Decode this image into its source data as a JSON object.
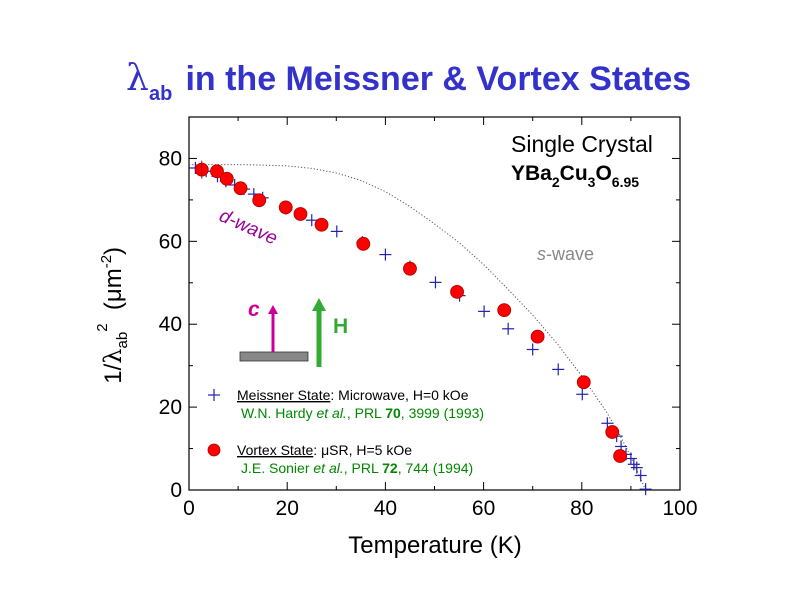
{
  "title": {
    "symbol": "λ",
    "subscript": "ab",
    "text": " in the Meissner & Vortex States"
  },
  "colors": {
    "title": "#3333cc",
    "meissner": "#2222aa",
    "vortex_fill": "#ff0000",
    "vortex_edge": "#aa0000",
    "dwave": "#990099",
    "swave": "#888888",
    "legend_ref": "#008800",
    "c_arrow": "#cc0099",
    "h_arrow": "#33aa33",
    "crystal": "#888888"
  },
  "annotations": {
    "crystal_line1": "Single Crystal",
    "formula": [
      {
        "t": "YBa",
        "sub": false
      },
      {
        "t": "2",
        "sub": true
      },
      {
        "t": "Cu",
        "sub": false
      },
      {
        "t": "3",
        "sub": true
      },
      {
        "t": "O",
        "sub": false
      },
      {
        "t": "6.95",
        "sub": true
      }
    ],
    "dwave": "d-wave",
    "swave_italic": "s",
    "swave_rest": "-wave",
    "c_label": "c",
    "h_label": "H"
  },
  "legend": {
    "meissner": {
      "name": "Meissner State",
      "detail": ": Microwave, H=0 kOe",
      "ref_authors": "W.N. Hardy ",
      "ref_etal": "et al.",
      "ref_journal": ", PRL ",
      "ref_vol": "70",
      "ref_rest": ", 3999 (1993)"
    },
    "vortex": {
      "name": "Vortex State",
      "detail_sym": "μ",
      "detail": "SR, H=5 kOe",
      "ref_authors": "J.E. Sonier ",
      "ref_etal": "et al.",
      "ref_journal": ", PRL ",
      "ref_vol": "72",
      "ref_rest": ", 744 (1994)"
    }
  },
  "chart_data": {
    "type": "scatter",
    "xlabel": "Temperature (K)",
    "ylabel": {
      "prefix": "1/",
      "symbol": "λ",
      "sub": "ab",
      "sup": "2",
      "unit_open": "  (",
      "unit_sym": "μ",
      "unit_text": "m",
      "unit_sup": "-2",
      "unit_close": ")"
    },
    "xlim": [
      0,
      100
    ],
    "ylim": [
      0,
      90
    ],
    "xticks": [
      0,
      20,
      40,
      60,
      80,
      100
    ],
    "yticks": [
      0,
      20,
      40,
      60,
      80
    ],
    "grid": false,
    "series": [
      {
        "name": "Meissner State: Microwave, H=0 kOe",
        "marker": "plus",
        "points": [
          [
            1.3,
            77.7
          ],
          [
            3.5,
            76.9
          ],
          [
            5.8,
            75.7
          ],
          [
            7.5,
            74.5
          ],
          [
            9.3,
            73.6
          ],
          [
            11.2,
            72.6
          ],
          [
            13.2,
            71.4
          ],
          [
            15.0,
            70.5
          ],
          [
            19.7,
            67.9
          ],
          [
            25.0,
            65.1
          ],
          [
            30.1,
            62.4
          ],
          [
            35.3,
            59.8
          ],
          [
            40.0,
            56.8
          ],
          [
            45.0,
            53.9
          ],
          [
            50.2,
            50.1
          ],
          [
            55.1,
            46.9
          ],
          [
            60.1,
            43.1
          ],
          [
            65.0,
            38.9
          ],
          [
            70.0,
            33.9
          ],
          [
            75.2,
            29.1
          ],
          [
            80.1,
            23.1
          ],
          [
            85.2,
            16.1
          ],
          [
            87.1,
            13.0
          ],
          [
            88.0,
            10.5
          ],
          [
            89.0,
            8.6
          ],
          [
            90.0,
            7.6
          ],
          [
            90.6,
            6.2
          ],
          [
            91.2,
            5.4
          ],
          [
            92.0,
            3.5
          ],
          [
            93.0,
            0.2
          ]
        ]
      },
      {
        "name": "Vortex State: μSR, H=5 kOe",
        "marker": "circle",
        "points": [
          [
            2.6,
            77.3
          ],
          [
            5.7,
            76.9
          ],
          [
            7.7,
            75.1
          ],
          [
            10.5,
            72.8
          ],
          [
            14.3,
            69.9
          ],
          [
            19.7,
            68.2
          ],
          [
            22.7,
            66.6
          ],
          [
            27.0,
            64.0
          ],
          [
            35.5,
            59.4
          ],
          [
            45.0,
            53.4
          ],
          [
            54.6,
            47.8
          ],
          [
            64.2,
            43.4
          ],
          [
            71.0,
            37.0
          ],
          [
            80.4,
            26.0
          ],
          [
            86.2,
            14.0
          ],
          [
            87.8,
            8.2
          ]
        ]
      }
    ],
    "curves": [
      {
        "name": "s-wave",
        "style": "dotted",
        "points": [
          [
            0,
            78.5
          ],
          [
            10,
            78.5
          ],
          [
            15,
            78.4
          ],
          [
            20,
            78.2
          ],
          [
            25,
            77.6
          ],
          [
            30,
            76.5
          ],
          [
            35,
            74.7
          ],
          [
            40,
            72.0
          ],
          [
            45,
            68.4
          ],
          [
            50,
            64.2
          ],
          [
            55,
            59.7
          ],
          [
            60,
            54.4
          ],
          [
            65,
            48.4
          ],
          [
            70,
            42.2
          ],
          [
            75,
            35.3
          ],
          [
            80,
            27.5
          ],
          [
            85,
            18.9
          ],
          [
            88,
            12.7
          ],
          [
            90,
            8.0
          ],
          [
            91.5,
            4.0
          ],
          [
            93,
            0.0
          ]
        ]
      }
    ]
  }
}
